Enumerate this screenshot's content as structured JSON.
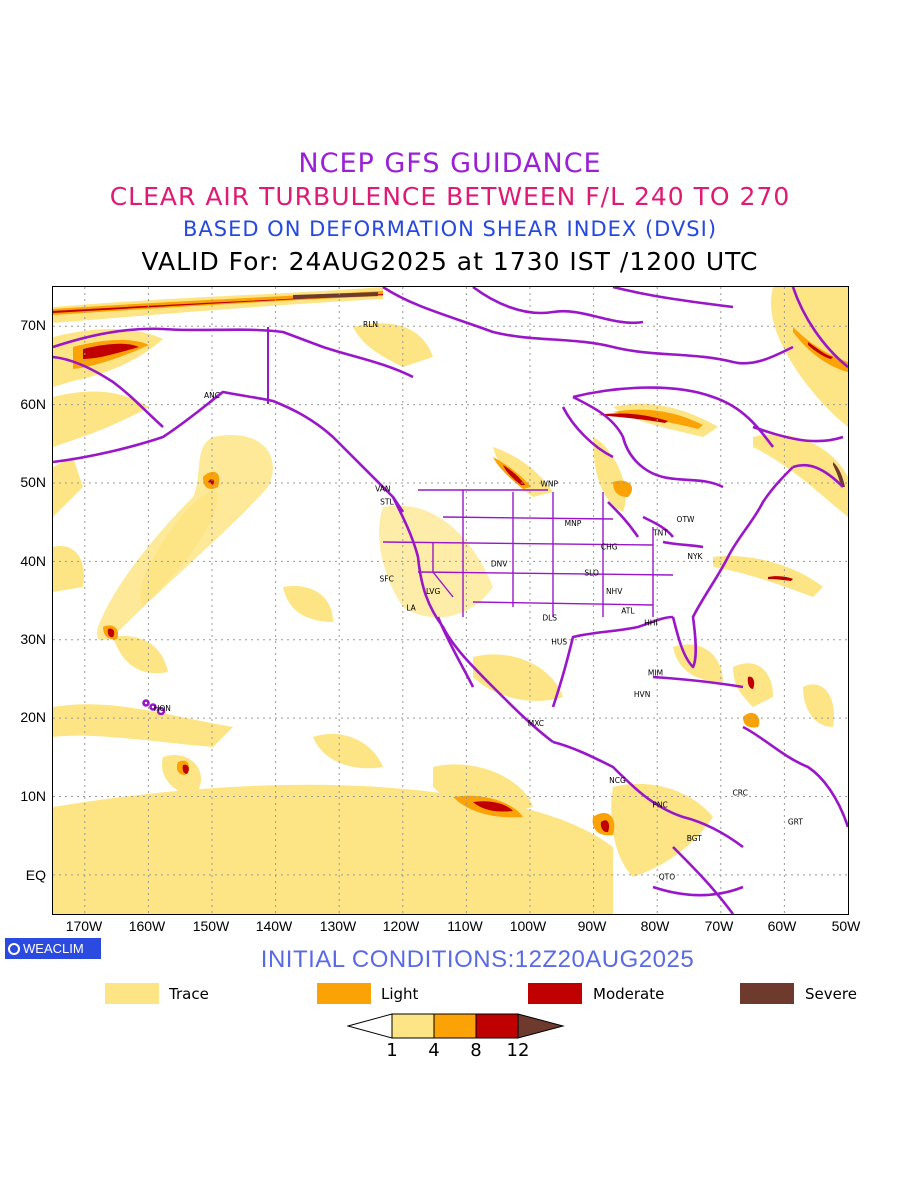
{
  "titles": {
    "line1": "NCEP GFS GUIDANCE",
    "line2": "CLEAR AIR TURBULENCE BETWEEN F/L 240 TO 270",
    "line3": "BASED ON DEFORMATION SHEAR INDEX (DVSI)",
    "line4": "VALID For: 24AUG2025 at 1730 IST /1200 UTC"
  },
  "colors": {
    "title1": "#9a1fd6",
    "title2": "#e01a74",
    "title3": "#2548e0",
    "trace": "#fde585",
    "light": "#fba206",
    "moderate": "#c00000",
    "severe": "#6e3a2e",
    "borders": "#9a16c9",
    "grid": "#9a9a9a"
  },
  "map": {
    "lon_range": [
      -175,
      -50
    ],
    "lat_range": [
      -5,
      75
    ],
    "lat_ticks": [
      "70N",
      "60N",
      "50N",
      "40N",
      "30N",
      "20N",
      "10N",
      "EQ"
    ],
    "lon_ticks": [
      "170W",
      "160W",
      "150W",
      "140W",
      "130W",
      "120W",
      "110W",
      "100W",
      "90W",
      "80W",
      "70W",
      "60W",
      "50W"
    ],
    "stations": [
      {
        "code": "ANC",
        "lon": -150.0,
        "lat": 61.2
      },
      {
        "code": "RLN",
        "lon": -125.0,
        "lat": 70.3
      },
      {
        "code": "VAN",
        "lon": -123.1,
        "lat": 49.3
      },
      {
        "code": "STL",
        "lon": -122.3,
        "lat": 47.6
      },
      {
        "code": "WNP",
        "lon": -97.1,
        "lat": 49.9
      },
      {
        "code": "MNP",
        "lon": -93.3,
        "lat": 44.9
      },
      {
        "code": "OTW",
        "lon": -75.7,
        "lat": 45.4
      },
      {
        "code": "TNT",
        "lon": -79.4,
        "lat": 43.7
      },
      {
        "code": "CHG",
        "lon": -87.6,
        "lat": 41.9
      },
      {
        "code": "NYK",
        "lon": -74.0,
        "lat": 40.7
      },
      {
        "code": "DNV",
        "lon": -104.9,
        "lat": 39.7
      },
      {
        "code": "SFC",
        "lon": -122.4,
        "lat": 37.8
      },
      {
        "code": "LVG",
        "lon": -115.1,
        "lat": 36.2
      },
      {
        "code": "SLO",
        "lon": -90.2,
        "lat": 38.6
      },
      {
        "code": "NHV",
        "lon": -86.8,
        "lat": 36.2
      },
      {
        "code": "LA",
        "lon": -118.2,
        "lat": 34.1
      },
      {
        "code": "ATL",
        "lon": -84.4,
        "lat": 33.7
      },
      {
        "code": "DLS",
        "lon": -96.8,
        "lat": 32.8
      },
      {
        "code": "HHI",
        "lon": -80.8,
        "lat": 32.2
      },
      {
        "code": "HUS",
        "lon": -95.4,
        "lat": 29.8
      },
      {
        "code": "MIM",
        "lon": -80.2,
        "lat": 25.8
      },
      {
        "code": "HVN",
        "lon": -82.4,
        "lat": 23.1
      },
      {
        "code": "HON",
        "lon": -157.9,
        "lat": 21.3
      },
      {
        "code": "MXC",
        "lon": -99.1,
        "lat": 19.4
      },
      {
        "code": "NCG",
        "lon": -86.3,
        "lat": 12.1
      },
      {
        "code": "CRC",
        "lon": -66.9,
        "lat": 10.5
      },
      {
        "code": "PNC",
        "lon": -79.5,
        "lat": 9.0
      },
      {
        "code": "GRT",
        "lon": -58.2,
        "lat": 6.8
      },
      {
        "code": "BGT",
        "lon": -74.1,
        "lat": 4.7
      },
      {
        "code": "QTO",
        "lon": -78.5,
        "lat": -0.2
      }
    ]
  },
  "branding": {
    "label": "WEACLIM"
  },
  "initial_conditions": "INITIAL CONDITIONS:12Z20AUG2025",
  "legend": [
    {
      "label": "Trace",
      "color": "#fde585"
    },
    {
      "label": "Light",
      "color": "#fba206"
    },
    {
      "label": "Moderate",
      "color": "#c00000"
    },
    {
      "label": "Severe",
      "color": "#6e3a2e"
    }
  ],
  "colorbar": {
    "labels": [
      "1",
      "4",
      "8",
      "12"
    ]
  }
}
